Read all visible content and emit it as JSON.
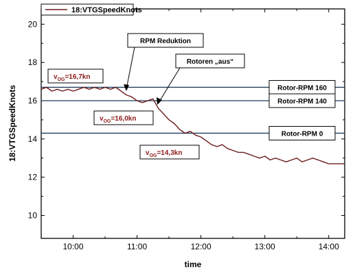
{
  "chart_data": {
    "type": "line",
    "title": "",
    "xlabel": "time",
    "ylabel": "18:VTGSpeedKnots",
    "xlim": [
      "09:30",
      "14:15"
    ],
    "ylim": [
      8.8,
      20.8
    ],
    "x_ticks": [
      "10:00",
      "11:00",
      "12:00",
      "13:00",
      "14:00"
    ],
    "y_ticks": [
      "10",
      "12",
      "14",
      "16",
      "18",
      "20"
    ],
    "grid": false,
    "legend": {
      "position": "top-left",
      "entries": [
        "18:VTGSpeedKnots"
      ]
    },
    "series": [
      {
        "name": "18:VTGSpeedKnots",
        "color": "#6b1a1a",
        "x": [
          "09:30",
          "09:35",
          "09:40",
          "09:45",
          "09:50",
          "09:55",
          "10:00",
          "10:05",
          "10:10",
          "10:15",
          "10:20",
          "10:25",
          "10:30",
          "10:35",
          "10:40",
          "10:45",
          "10:50",
          "10:55",
          "11:00",
          "11:05",
          "11:10",
          "11:15",
          "11:20",
          "11:25",
          "11:30",
          "11:35",
          "11:40",
          "11:45",
          "11:50",
          "11:55",
          "12:00",
          "12:05",
          "12:10",
          "12:15",
          "12:20",
          "12:25",
          "12:30",
          "12:35",
          "12:40",
          "12:45",
          "12:50",
          "12:55",
          "13:00",
          "13:05",
          "13:10",
          "13:15",
          "13:20",
          "13:25",
          "13:30",
          "13:35",
          "13:40",
          "13:45",
          "13:50",
          "13:55",
          "14:00",
          "14:05",
          "14:10",
          "14:15"
        ],
        "y": [
          16.6,
          16.7,
          16.5,
          16.6,
          16.5,
          16.6,
          16.5,
          16.6,
          16.7,
          16.6,
          16.7,
          16.6,
          16.7,
          16.6,
          16.7,
          16.5,
          16.3,
          16.2,
          16.0,
          15.9,
          16.0,
          16.1,
          15.6,
          15.3,
          15.0,
          14.8,
          14.5,
          14.3,
          14.4,
          14.2,
          14.1,
          13.9,
          13.7,
          13.6,
          13.7,
          13.5,
          13.4,
          13.3,
          13.3,
          13.2,
          13.1,
          13.0,
          13.1,
          12.9,
          13.0,
          12.9,
          12.8,
          12.9,
          13.0,
          12.8,
          12.9,
          13.0,
          12.9,
          12.8,
          12.7,
          12.7,
          12.7,
          12.7
        ]
      }
    ],
    "reference_lines": [
      {
        "y": 16.7,
        "label": "Rotor-RPM 160"
      },
      {
        "y": 16.0,
        "label": "Rotor-RPM 140"
      },
      {
        "y": 14.3,
        "label": "Rotor-RPM 0"
      }
    ],
    "annotations": [
      {
        "label": "RPM Reduktion",
        "x": "10:50",
        "y": 16.6
      },
      {
        "label": "Rotoren „aus“",
        "x": "11:20",
        "y": 16.0
      }
    ],
    "value_labels": [
      {
        "prefix": "v",
        "sub": "OG",
        "value": "=16,7kn"
      },
      {
        "prefix": "v",
        "sub": "OG",
        "value": "=16,0kn"
      },
      {
        "prefix": "v",
        "sub": "OG",
        "value": "=14,3kn"
      }
    ]
  }
}
